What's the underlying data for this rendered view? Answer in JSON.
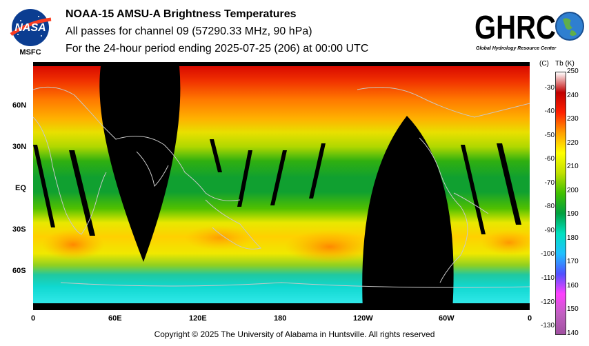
{
  "header": {
    "title": "NOAA-15 AMSU-A Brightness Temperatures",
    "line2": "All passes for channel 09 (57290.33 MHz, 90 hPa)",
    "line3": "For the 24-hour period ending 2025-07-25 (206) at 00:00 UTC"
  },
  "logos": {
    "nasa": {
      "word": "NASA",
      "sub": "MSFC"
    },
    "ghrc": {
      "word": "GHRC",
      "sub": "Global Hydrology Resource Center"
    }
  },
  "map": {
    "lat_labels": [
      "60N",
      "30N",
      "EQ",
      "30S",
      "60S"
    ],
    "lon_labels": [
      "0",
      "60E",
      "120E",
      "180",
      "120W",
      "60W",
      "0"
    ]
  },
  "colorbar": {
    "celsius_header": "(C)",
    "kelvin_header": "Tb  (K)",
    "celsius_ticks": [
      "-30",
      "-40",
      "-50",
      "-60",
      "-70",
      "-80",
      "-90",
      "-100",
      "-110",
      "-120",
      "-130"
    ],
    "kelvin_ticks": [
      "250",
      "240",
      "230",
      "220",
      "210",
      "200",
      "190",
      "180",
      "170",
      "160",
      "150",
      "140"
    ],
    "range_k": [
      140,
      250
    ],
    "colors": [
      "#a050a0",
      "#c060c0",
      "#ff40ff",
      "#5050ff",
      "#20c0ff",
      "#00e0c0",
      "#00a040",
      "#40c000",
      "#c0e000",
      "#ffff00",
      "#ffa000",
      "#ff2000",
      "#c00000",
      "#ffffff"
    ]
  },
  "footer": {
    "copyright": "Copyright © 2025 The University of Alabama in Huntsville.  All rights reserved"
  }
}
